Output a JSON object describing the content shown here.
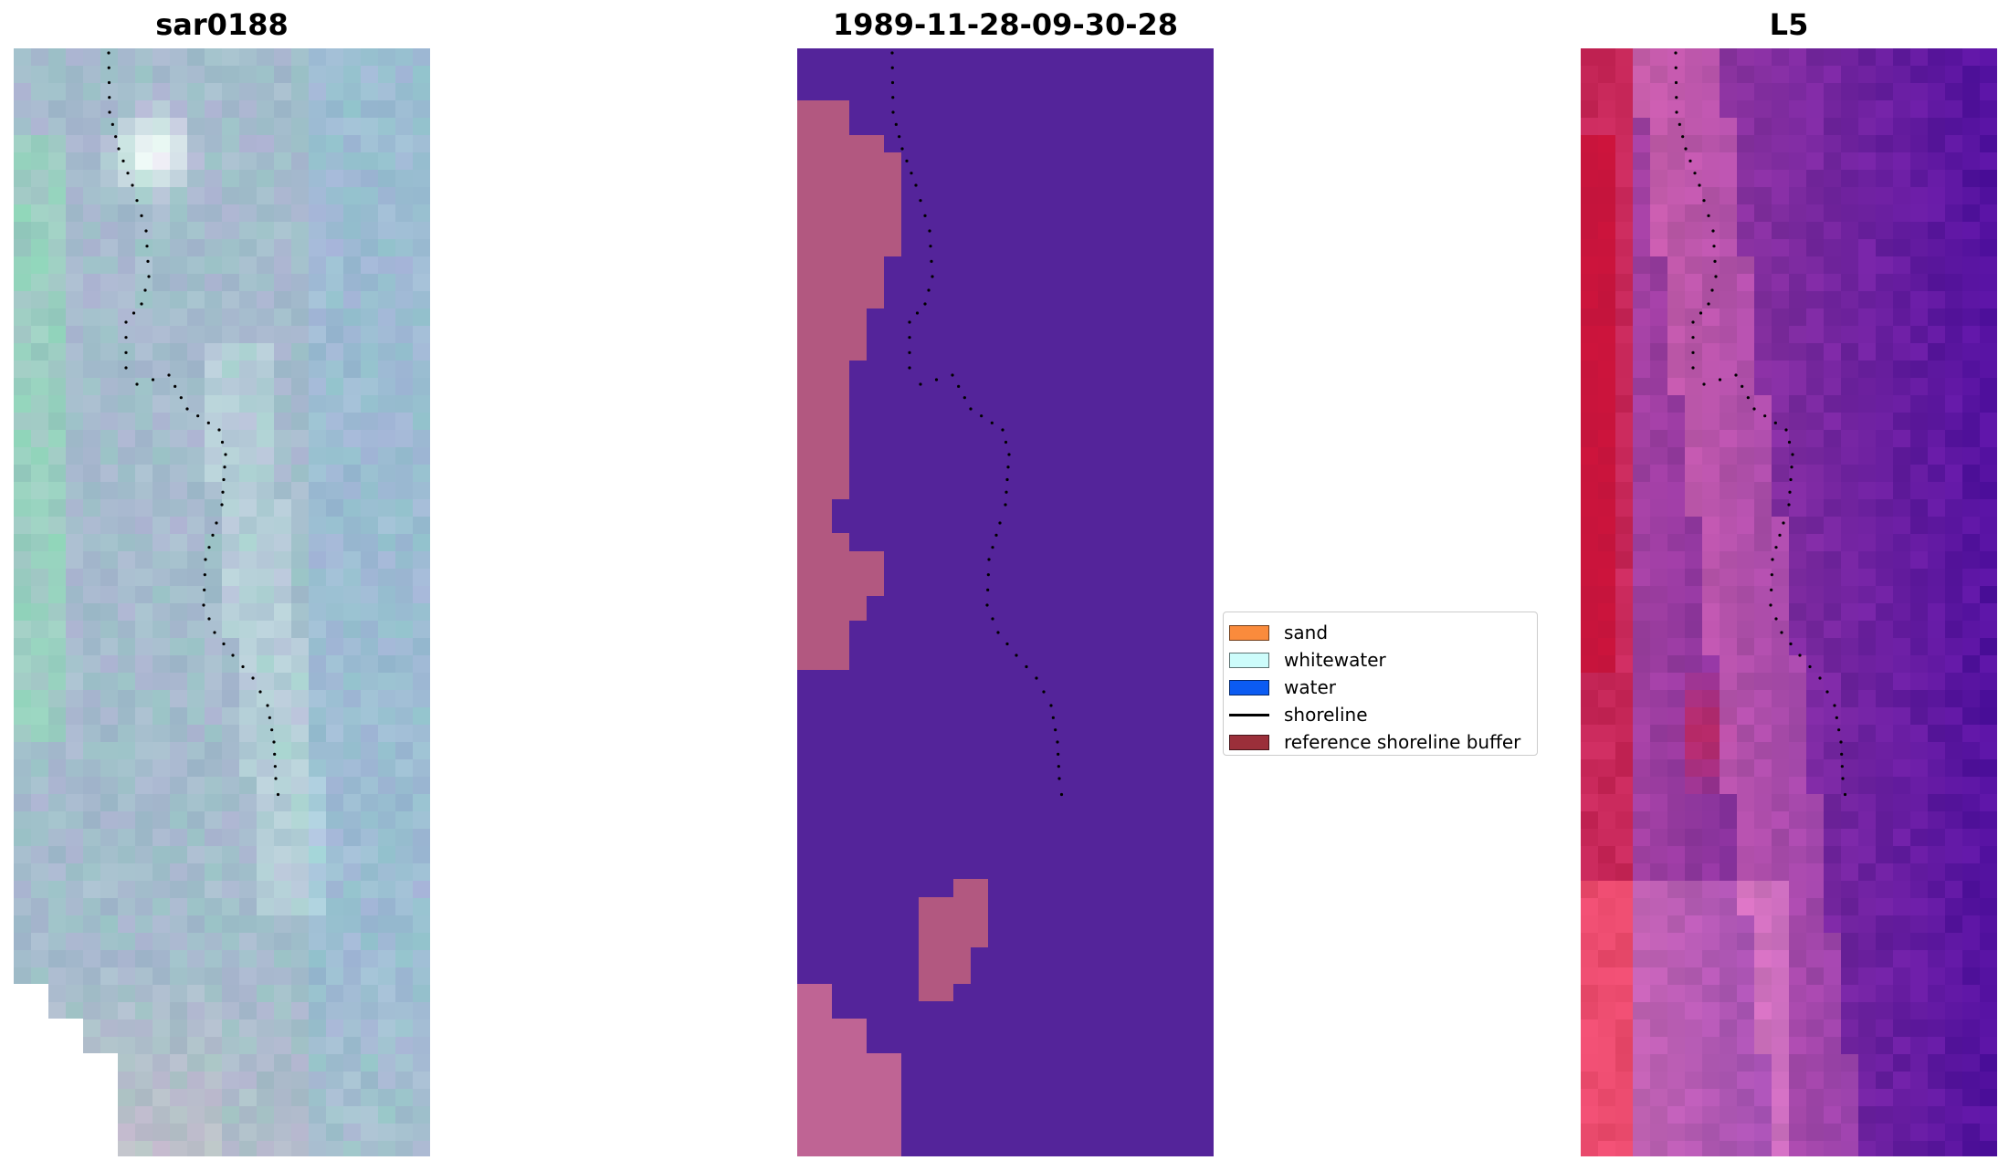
{
  "panels": [
    {
      "title": "sar0188",
      "kind": "rgb"
    },
    {
      "title": "1989-11-28-09-30-28",
      "kind": "classification"
    },
    {
      "title": "L5",
      "kind": "index"
    }
  ],
  "colors": {
    "water_class": "#54249a",
    "sand_class": "#b25880",
    "sand_light": "#bf6494",
    "rgb_base": "#a7bcc9",
    "index_purple": "#7e2a9e",
    "index_red": "#c4204a"
  },
  "legend": {
    "items": [
      {
        "label": "sand",
        "type": "patch",
        "color": "#fa8b3c"
      },
      {
        "label": "whitewater",
        "type": "patch",
        "color": "#cdfcfb"
      },
      {
        "label": "water",
        "type": "patch",
        "color": "#0b5bf2"
      },
      {
        "label": "shoreline",
        "type": "line",
        "color": "#000000"
      },
      {
        "label": "reference shoreline buffer",
        "type": "patch",
        "color": "#9b2f3a"
      }
    ]
  }
}
